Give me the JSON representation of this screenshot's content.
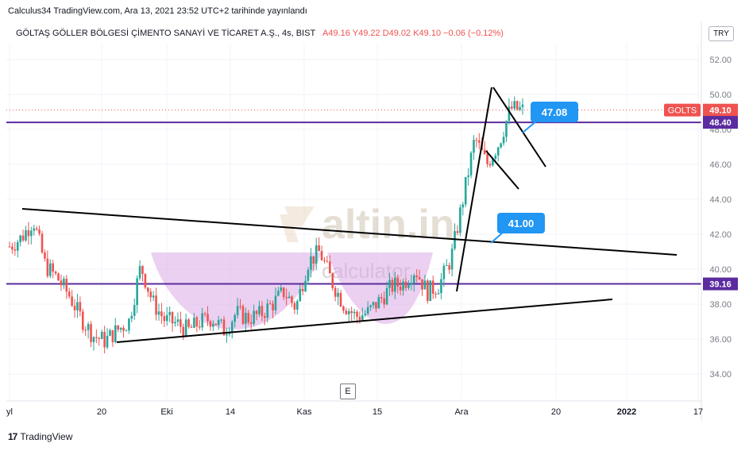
{
  "caption": "Calculus34 TradingView.com, Ara 13, 2021 23:52 UTC+2 tarihinde yayınlandı",
  "symbol": {
    "name": "GÖLTAŞ GÖLLER BÖLGESİ ÇİMENTO SANAYİ VE TİCARET A.Ş., 4s, BIST",
    "ohlc": "A49.16  Y49.22  D49.02  K49.10  −0.06 (−0.12%)"
  },
  "currency": "TRY",
  "brand": "TradingView",
  "event_marker": "E",
  "watermark": {
    "line1": "altin.in",
    "line2": "calculator"
  },
  "colors": {
    "up": "#26a69a",
    "down": "#ef5350",
    "level": "#5b2c9f",
    "callout": "#2196f3",
    "cup": "#dcaae6"
  },
  "chart_data": {
    "type": "candlestick",
    "ylim": [
      32.6,
      52.9
    ],
    "y_ticks": [
      "52.00",
      "50.00",
      "48.00",
      "46.00",
      "44.00",
      "42.00",
      "40.00",
      "38.00",
      "36.00",
      "34.00"
    ],
    "x_ticks": [
      "yl",
      "20",
      "Eki",
      "14",
      "Kas",
      "15",
      "Ara",
      "20",
      "2022",
      "17"
    ],
    "last_price": {
      "label": "GOLTS",
      "value": "49.10"
    },
    "levels": [
      {
        "value": 48.4,
        "label": "48.40"
      },
      {
        "value": 39.16,
        "label": "39.16"
      }
    ],
    "callouts": [
      {
        "label": "47.08"
      },
      {
        "label": "41.00"
      }
    ],
    "close_path": [
      41.3,
      41.8,
      42.8,
      40.2,
      39.5,
      38.5,
      37.2,
      36.2,
      35.9,
      36.5,
      37.0,
      40.2,
      38.1,
      37.1,
      36.9,
      36.5,
      37.0,
      37.2,
      36.5,
      37.5,
      37.2,
      37.4,
      38.0,
      38.7,
      37.8,
      40.4,
      41.0,
      39.3,
      38.0,
      37.3,
      37.5,
      38.2,
      39.0,
      39.2,
      40.0,
      38.7,
      39.1,
      40.6,
      44.0,
      47.5,
      46.0,
      47.2,
      49.2,
      49.1
    ]
  }
}
